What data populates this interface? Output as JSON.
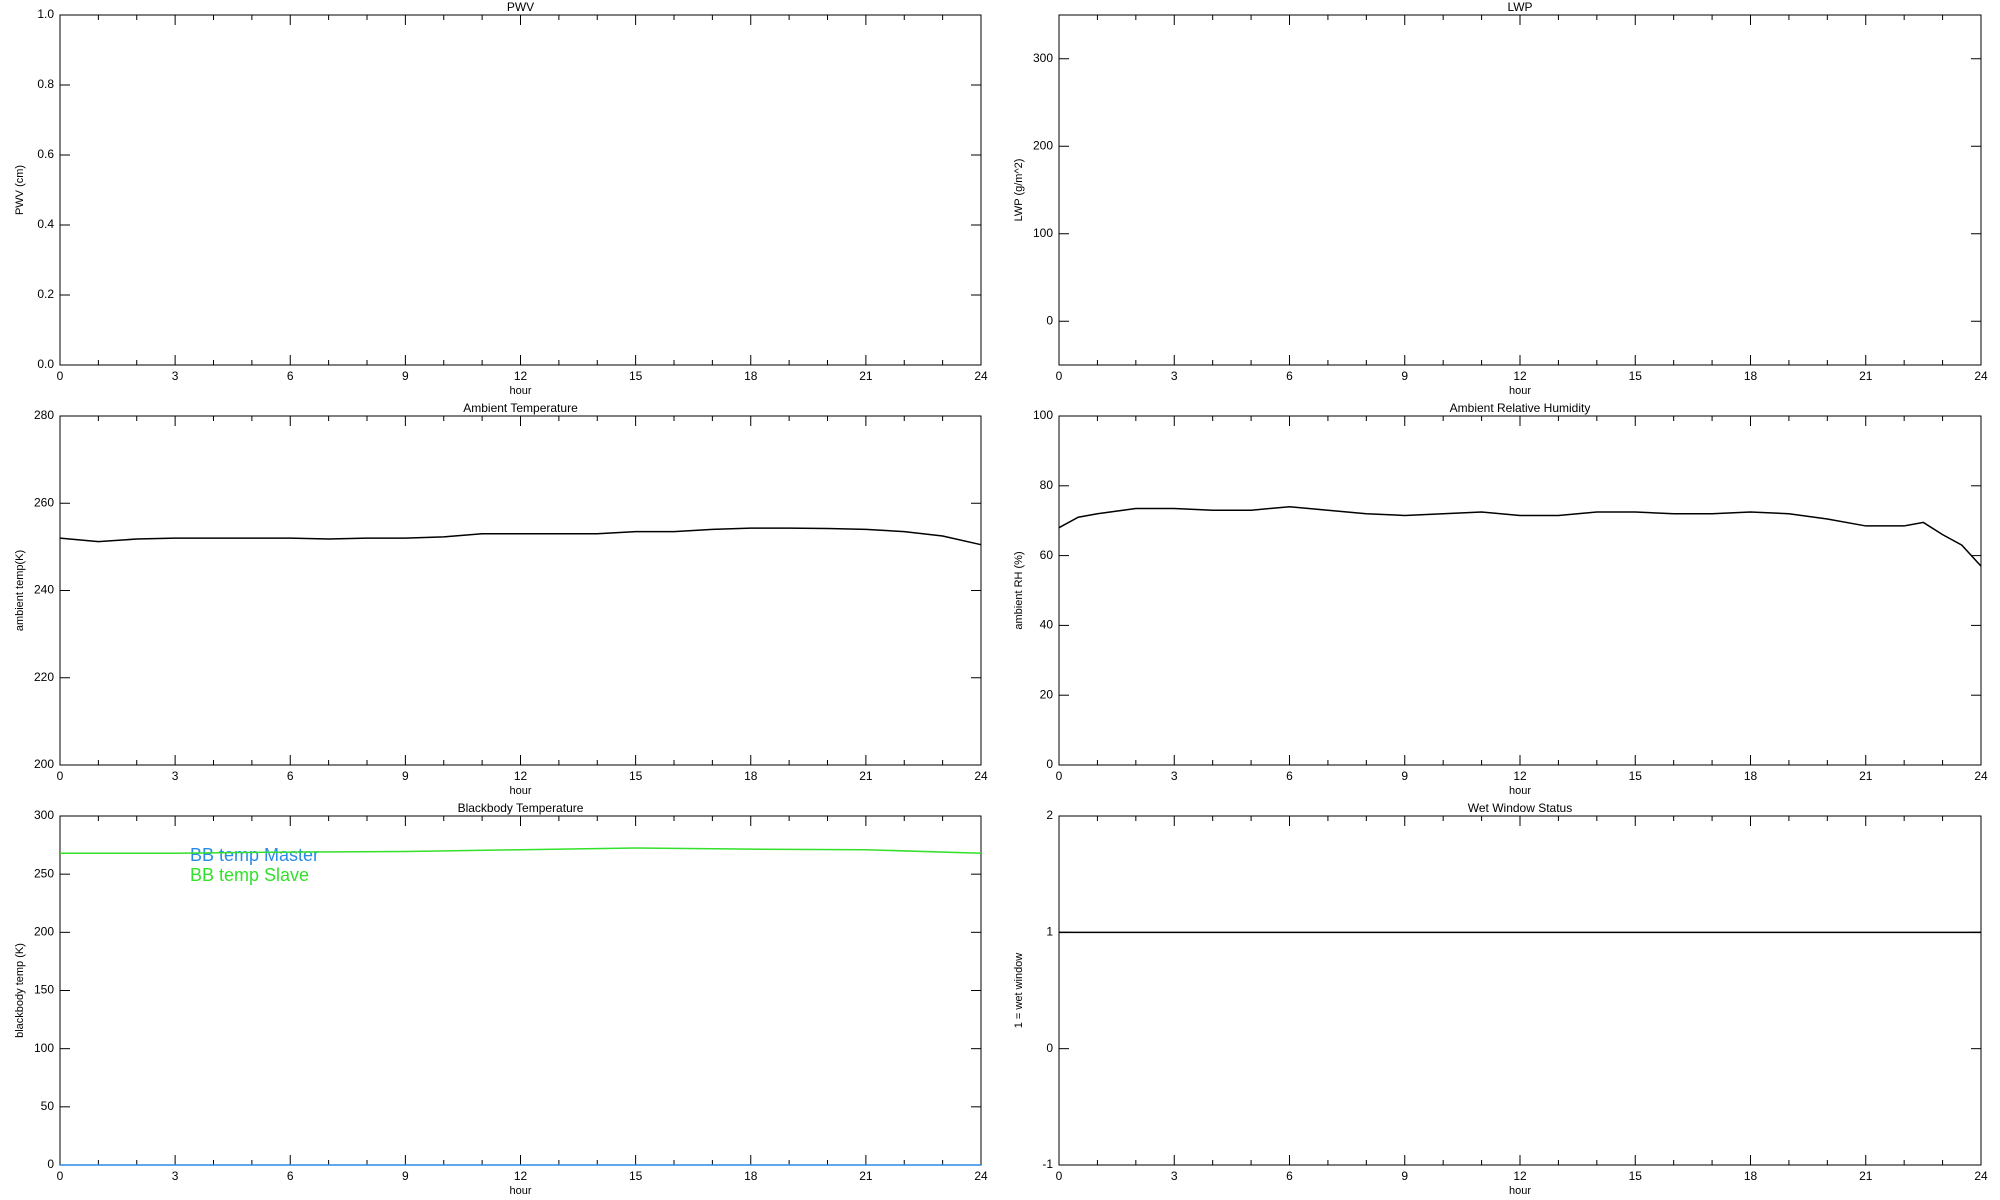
{
  "chart_data": [
    {
      "type": "line",
      "title": "PWV",
      "xlabel": "hour",
      "ylabel": "PWV (cm)",
      "xlim": [
        0,
        24
      ],
      "xticks": [
        0,
        3,
        6,
        9,
        12,
        15,
        18,
        21,
        24
      ],
      "ylim": [
        0,
        1
      ],
      "yticks": [
        {
          "value": 0,
          "label": "0.0"
        },
        0.2,
        0.4,
        0.6,
        0.8,
        {
          "value": 1,
          "label": "1.0"
        }
      ],
      "x": [],
      "series": []
    },
    {
      "type": "line",
      "title": "LWP",
      "xlabel": "hour",
      "ylabel": "LWP (g/m^2)",
      "xlim": [
        0,
        24
      ],
      "xticks": [
        0,
        3,
        6,
        9,
        12,
        15,
        18,
        21,
        24
      ],
      "ylim": [
        -50,
        350
      ],
      "yticks": [
        0,
        100,
        200,
        300
      ],
      "x": [],
      "series": []
    },
    {
      "type": "line",
      "title": "Ambient Temperature",
      "xlabel": "hour",
      "ylabel": "ambient temp(K)",
      "xlim": [
        0,
        24
      ],
      "xticks": [
        0,
        3,
        6,
        9,
        12,
        15,
        18,
        21,
        24
      ],
      "ylim": [
        200,
        280
      ],
      "yticks": [
        200,
        220,
        240,
        260,
        280
      ],
      "x": [
        0,
        1,
        2,
        3,
        4,
        5,
        6,
        7,
        8,
        9,
        10,
        11,
        12,
        13,
        14,
        15,
        16,
        17,
        18,
        19,
        20,
        21,
        22,
        23,
        24
      ],
      "series": [
        {
          "color": "#000000",
          "values": [
            252,
            251.2,
            251.8,
            252,
            252,
            252,
            252,
            251.8,
            252,
            252,
            252.3,
            253,
            253,
            253,
            253,
            253.5,
            253.5,
            254,
            254.3,
            254.3,
            254.2,
            254,
            253.5,
            252.5,
            250.5
          ]
        }
      ]
    },
    {
      "type": "line",
      "title": "Ambient Relative Humidity",
      "xlabel": "hour",
      "ylabel": "ambient RH (%)",
      "xlim": [
        0,
        24
      ],
      "xticks": [
        0,
        3,
        6,
        9,
        12,
        15,
        18,
        21,
        24
      ],
      "ylim": [
        0,
        100
      ],
      "yticks": [
        0,
        20,
        40,
        60,
        80,
        100
      ],
      "x": [
        0,
        0.5,
        1,
        2,
        3,
        4,
        5,
        6,
        7,
        8,
        9,
        10,
        11,
        12,
        13,
        14,
        15,
        16,
        17,
        18,
        19,
        20,
        21,
        22,
        22.5,
        23,
        23.5,
        24
      ],
      "series": [
        {
          "color": "#000000",
          "values": [
            68,
            71,
            72,
            73.5,
            73.5,
            73,
            73,
            74,
            73,
            72,
            71.5,
            72,
            72.5,
            71.5,
            71.5,
            72.5,
            72.5,
            72,
            72,
            72.5,
            72,
            70.5,
            68.5,
            68.5,
            69.5,
            66,
            63,
            57
          ]
        }
      ]
    },
    {
      "type": "line",
      "title": "Blackbody Temperature",
      "xlabel": "hour",
      "ylabel": "blackbody temp (K)",
      "xlim": [
        0,
        24
      ],
      "xticks": [
        0,
        3,
        6,
        9,
        12,
        15,
        18,
        21,
        24
      ],
      "ylim": [
        0,
        300
      ],
      "yticks": [
        0,
        50,
        100,
        150,
        200,
        250,
        300
      ],
      "x": [
        0,
        3,
        6,
        9,
        12,
        15,
        18,
        21,
        24
      ],
      "series": [
        {
          "name": "BB temp Master",
          "color": "#2a8ae6",
          "values": [
            0,
            0,
            0,
            0,
            0,
            0,
            0,
            0,
            0
          ]
        },
        {
          "name": "BB temp Slave",
          "color": "#33e02a",
          "values": [
            268,
            268,
            269,
            269.5,
            271,
            272.5,
            271.5,
            271,
            268
          ]
        }
      ]
    },
    {
      "type": "line",
      "title": "Wet Window Status",
      "xlabel": "hour",
      "ylabel": "1 = wet window",
      "xlim": [
        0,
        24
      ],
      "xticks": [
        0,
        3,
        6,
        9,
        12,
        15,
        18,
        21,
        24
      ],
      "ylim": [
        -1,
        2
      ],
      "yticks": [
        -1,
        0,
        1,
        2
      ],
      "x": [
        0,
        24
      ],
      "series": [
        {
          "color": "#000000",
          "values": [
            1,
            1
          ]
        }
      ]
    }
  ]
}
